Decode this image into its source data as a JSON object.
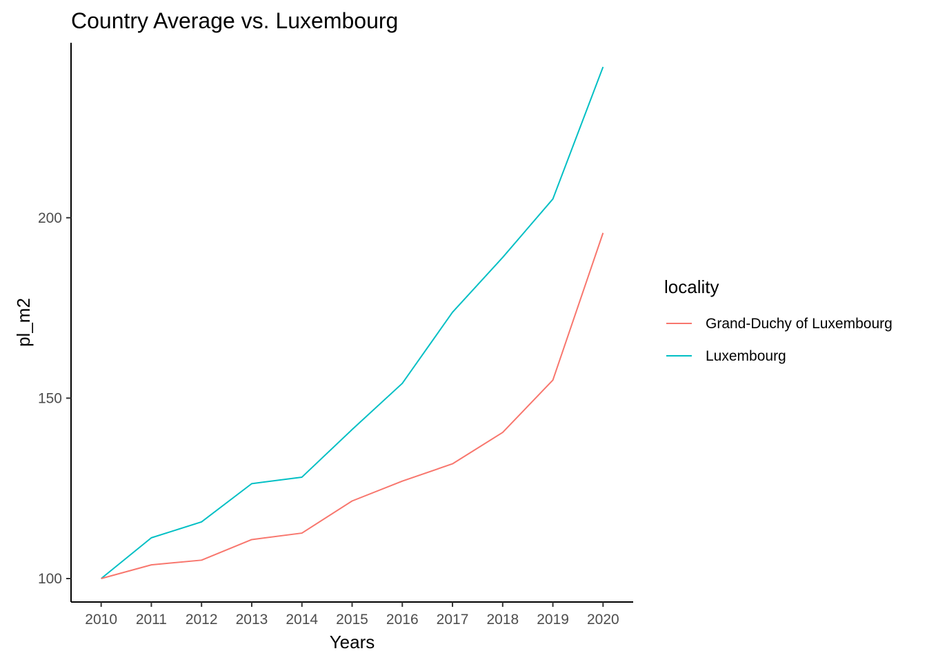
{
  "chart_data": {
    "type": "line",
    "title": "Country Average vs. Luxembourg",
    "xlabel": "Years",
    "ylabel": "pl_m2",
    "x": [
      2010,
      2011,
      2012,
      2013,
      2014,
      2015,
      2016,
      2017,
      2018,
      2019,
      2020
    ],
    "xlim": [
      2009.4,
      2020.6
    ],
    "ylim": [
      93.5,
      248.5
    ],
    "yticks": [
      100,
      150,
      200
    ],
    "grid": false,
    "legend": {
      "title": "locality",
      "position": "right"
    },
    "series": [
      {
        "name": "Grand-Duchy of Luxembourg",
        "color": "#F8766D",
        "values": [
          100,
          103.8,
          105.1,
          110.8,
          112.6,
          121.5,
          127.0,
          131.8,
          140.5,
          155.0,
          195.8
        ]
      },
      {
        "name": "Luxembourg",
        "color": "#00BFC4",
        "values": [
          100,
          111.3,
          115.7,
          126.3,
          128.1,
          141.3,
          154.1,
          173.8,
          189.0,
          205.2,
          241.8
        ]
      }
    ]
  }
}
